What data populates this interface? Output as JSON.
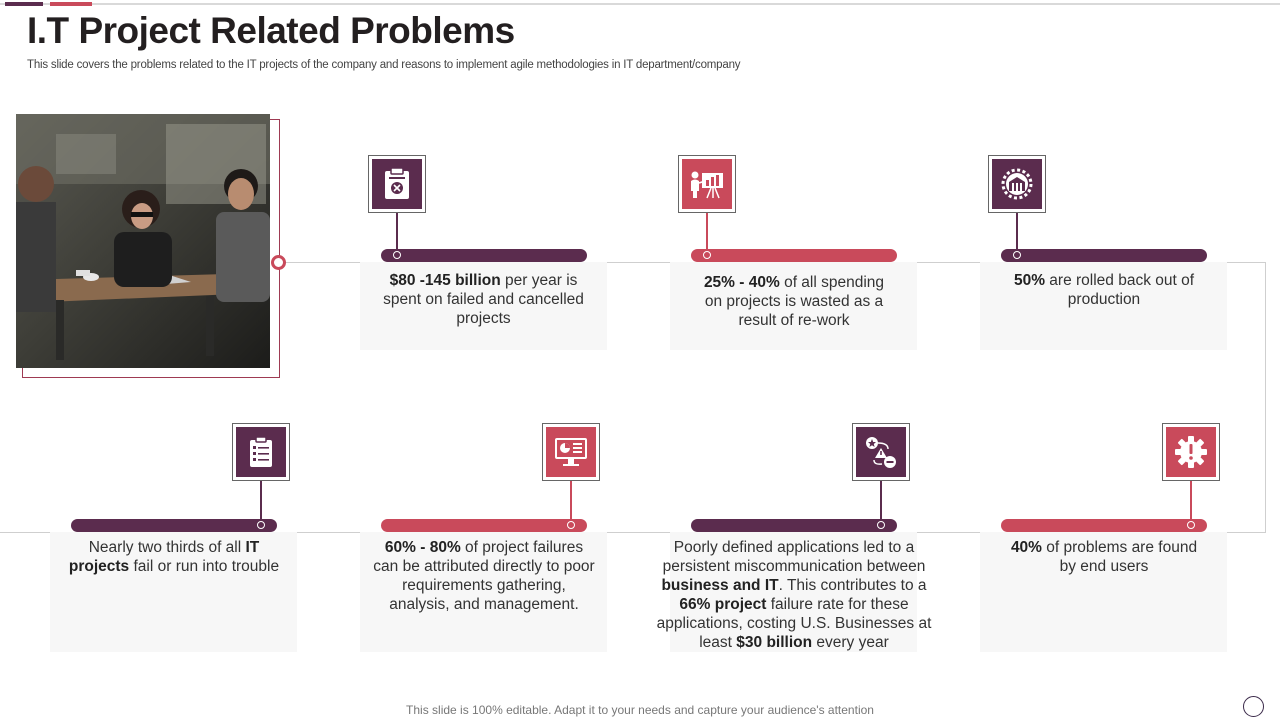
{
  "title": "I.T Project Related Problems",
  "subtitle": "This slide covers the problems related to the IT projects of the company and reasons to implement agile methodologies in IT department/company",
  "footer": "This slide is 100% editable. Adapt it to your needs and capture your audience's attention",
  "colors": {
    "purple": "#5b2c4e",
    "red": "#c94a5b"
  },
  "photo": {
    "description_icon": "team-meeting-photo"
  },
  "cards": [
    {
      "icon": "clipboard-cancel-icon",
      "color": "purple",
      "parts": [
        [
          "b",
          "$80 -145 billion"
        ],
        [
          "t",
          " per year is spent on failed and cancelled projects"
        ]
      ]
    },
    {
      "icon": "presentation-icon",
      "color": "red",
      "parts": [
        [
          "b",
          "25% - 40%"
        ],
        [
          "t",
          " of all spending on projects is wasted as a result of re-work"
        ]
      ]
    },
    {
      "icon": "gear-box-icon",
      "color": "purple",
      "parts": [
        [
          "b",
          "50%"
        ],
        [
          "t",
          " are rolled back out of production"
        ]
      ]
    },
    {
      "icon": "checklist-icon",
      "color": "purple",
      "parts": [
        [
          "t",
          "Nearly two thirds of all "
        ],
        [
          "b",
          "IT projects"
        ],
        [
          "t",
          " fail or run into trouble"
        ]
      ]
    },
    {
      "icon": "monitor-chart-icon",
      "color": "red",
      "parts": [
        [
          "b",
          "60% - 80%"
        ],
        [
          "t",
          " of project failures can be attributed directly to poor requirements gathering, analysis, and management."
        ]
      ]
    },
    {
      "icon": "workflow-icon",
      "color": "purple",
      "parts": [
        [
          "t",
          "Poorly defined applications led to a persistent miscommunication between "
        ],
        [
          "b",
          "business and IT"
        ],
        [
          "t",
          ". This contributes to a "
        ],
        [
          "b",
          "66% project"
        ],
        [
          "t",
          " failure rate for these applications, costing U.S. Businesses at least "
        ],
        [
          "b",
          "$30 billion"
        ],
        [
          "t",
          " every year"
        ]
      ]
    },
    {
      "icon": "settings-icon",
      "color": "red",
      "parts": [
        [
          "b",
          "40%"
        ],
        [
          "t",
          " of problems are found by end users"
        ]
      ]
    }
  ]
}
